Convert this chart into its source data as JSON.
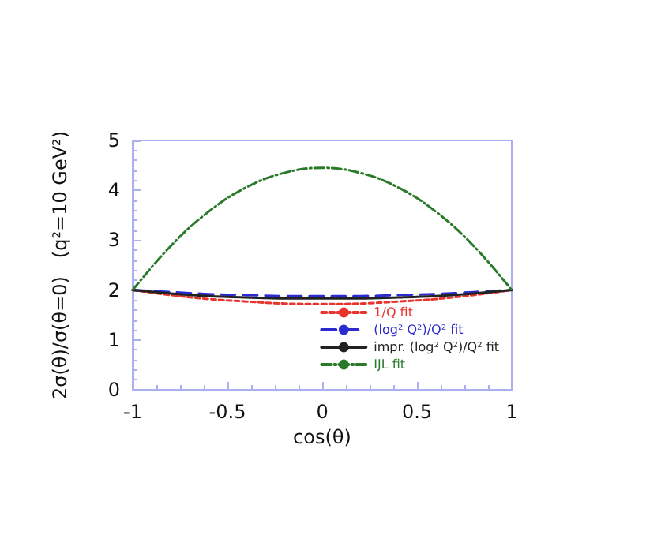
{
  "chart_data": {
    "type": "line",
    "xlabel": "cos(θ)",
    "ylabel": "2σ(θ)/σ(θ=0)   (q²=10 GeV²)",
    "x": [
      -1,
      -0.8,
      -0.6,
      -0.4,
      -0.2,
      0,
      0.2,
      0.4,
      0.6,
      0.8,
      1
    ],
    "xlim": [
      -1,
      1
    ],
    "xticks": [
      -1,
      -0.5,
      0,
      0.5,
      1
    ],
    "ylim": [
      0,
      5
    ],
    "yticks": [
      0,
      1,
      2,
      3,
      4,
      5
    ],
    "grid": false,
    "legend": "bottom right",
    "marker": "none",
    "series": [
      {
        "name": "1/Q fit",
        "color": "#e8342c",
        "line_style": "dotted",
        "values": [
          2,
          1.9,
          1.82,
          1.77,
          1.73,
          1.72,
          1.73,
          1.77,
          1.82,
          1.9,
          2
        ]
      },
      {
        "name": "(log² Q²)/Q² fit",
        "color": "#2b2bd0",
        "line_style": "dashed",
        "values": [
          2,
          1.96,
          1.92,
          1.9,
          1.88,
          1.88,
          1.88,
          1.9,
          1.92,
          1.96,
          2
        ]
      },
      {
        "name": "impr. (log² Q²)/Q² fit",
        "color": "#222222",
        "line_style": "solid",
        "values": [
          2,
          1.93,
          1.88,
          1.85,
          1.83,
          1.83,
          1.83,
          1.85,
          1.88,
          1.93,
          2
        ]
      },
      {
        "name": "IJL fit",
        "color": "#2a7a2a",
        "line_style": "dashdot",
        "values": [
          2,
          2.88,
          3.57,
          4.06,
          4.35,
          4.45,
          4.35,
          4.06,
          3.57,
          2.88,
          2
        ]
      }
    ]
  }
}
